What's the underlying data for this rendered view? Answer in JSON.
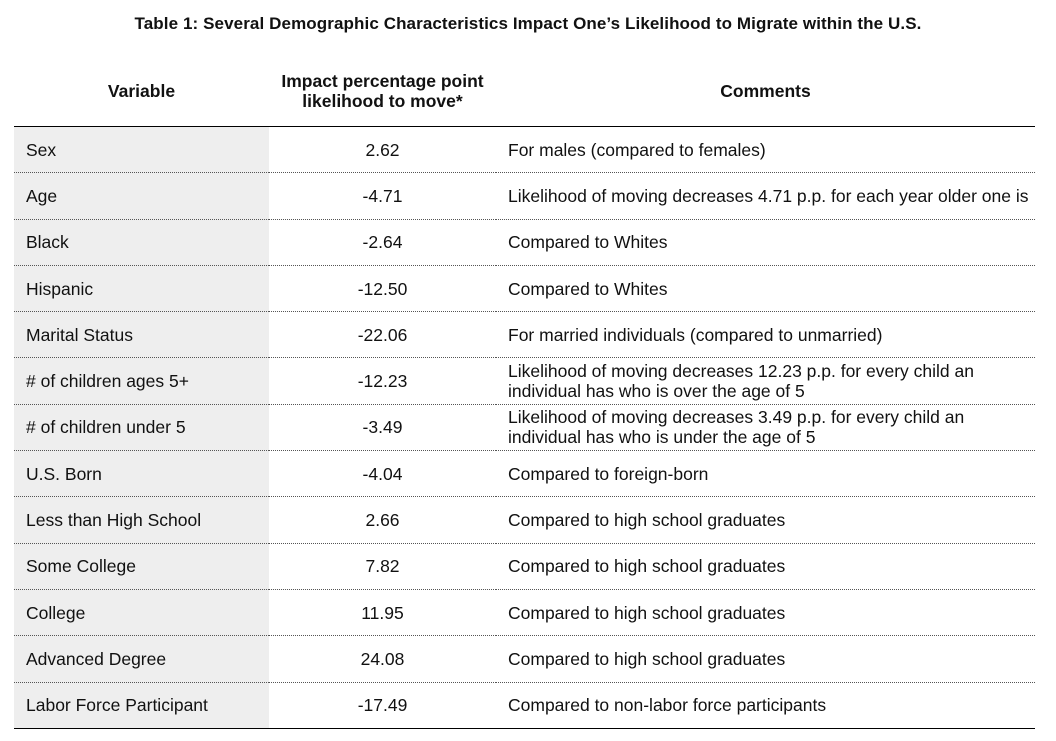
{
  "title": "Table 1: Several Demographic Characteristics Impact One’s Likelihood to Migrate within the U.S.",
  "headers": {
    "variable": "Variable",
    "impact": "Impact percentage point likelihood to move*",
    "comments": "Comments"
  },
  "rows": [
    {
      "variable": "Sex",
      "impact": "2.62",
      "comment": "For males (compared to females)"
    },
    {
      "variable": "Age",
      "impact": "-4.71",
      "comment": "Likelihood of moving decreases 4.71 p.p. for each year older one is"
    },
    {
      "variable": "Black",
      "impact": "-2.64",
      "comment": "Compared to Whites"
    },
    {
      "variable": "Hispanic",
      "impact": "-12.50",
      "comment": "Compared to Whites"
    },
    {
      "variable": "Marital Status",
      "impact": "-22.06",
      "comment": "For married individuals (compared to unmarried)"
    },
    {
      "variable": "# of children ages 5+",
      "impact": "-12.23",
      "comment": "Likelihood of moving decreases 12.23 p.p. for every child an individual has who is over the age of 5"
    },
    {
      "variable": "# of children under 5",
      "impact": "-3.49",
      "comment": "Likelihood of moving decreases 3.49 p.p. for every child an individual has who is under the age of 5"
    },
    {
      "variable": "U.S. Born",
      "impact": "-4.04",
      "comment": "Compared to foreign-born"
    },
    {
      "variable": "Less than High School",
      "impact": "2.66",
      "comment": "Compared to high school graduates"
    },
    {
      "variable": "Some College",
      "impact": "7.82",
      "comment": "Compared to high school graduates"
    },
    {
      "variable": "College",
      "impact": "11.95",
      "comment": "Compared to high school graduates"
    },
    {
      "variable": "Advanced Degree",
      "impact": "24.08",
      "comment": "Compared to high school graduates"
    },
    {
      "variable": "Labor Force Participant",
      "impact": "-17.49",
      "comment": "Compared to non-labor force participants"
    }
  ]
}
